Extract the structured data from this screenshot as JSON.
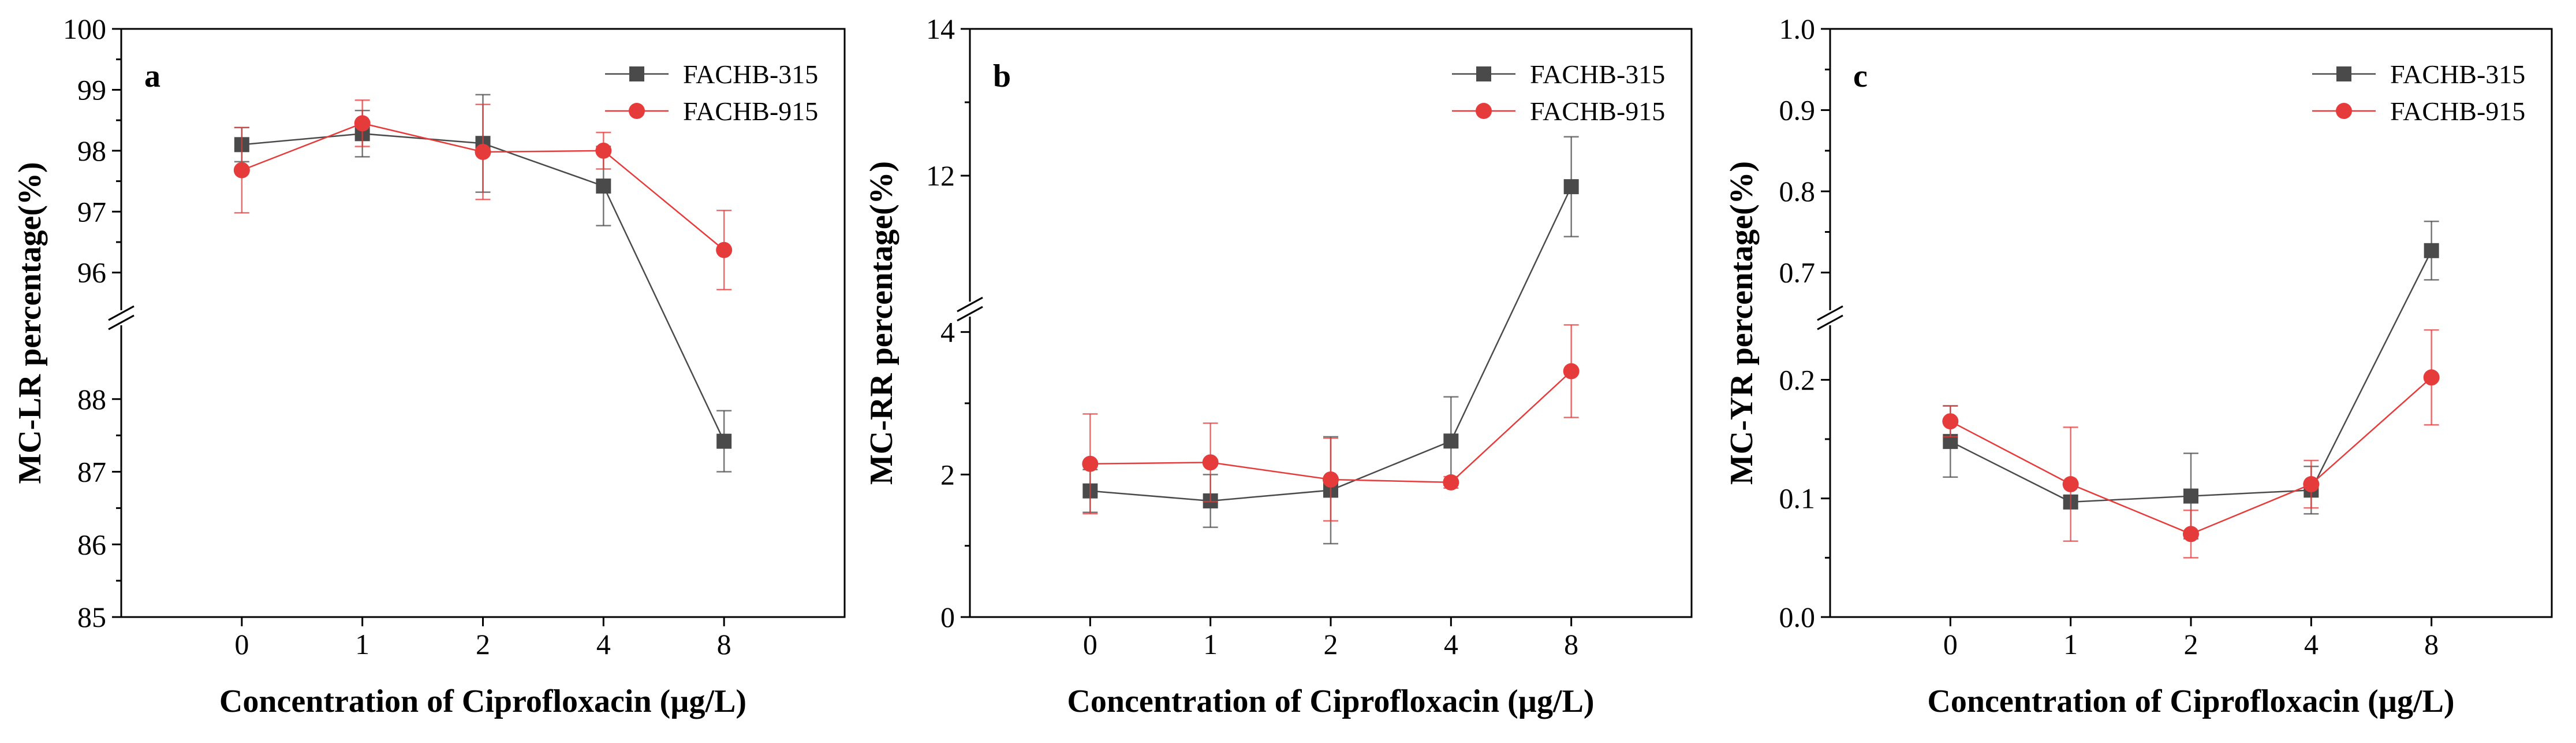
{
  "chart_data": [
    {
      "type": "line",
      "panel_label": "a",
      "title": "",
      "xlabel": "Concentration of Ciprofloxacin (µg/L)",
      "ylabel": "MC-LR percentage(%)",
      "categories": [
        "0",
        "1",
        "2",
        "4",
        "8"
      ],
      "y_axis_break": true,
      "segments": [
        {
          "ylim": [
            85,
            89
          ],
          "ticks": [
            "85",
            "86",
            "87",
            "88"
          ]
        },
        {
          "ylim": [
            95.4,
            100
          ],
          "ticks": [
            "96",
            "97",
            "98",
            "99",
            "100"
          ]
        }
      ],
      "series": [
        {
          "name": "FACHB-315",
          "color": "#4a4a4a",
          "marker": "square",
          "values": [
            98.1,
            98.28,
            98.12,
            97.42,
            87.42
          ],
          "errors": [
            0.28,
            0.38,
            0.8,
            0.65,
            0.42
          ]
        },
        {
          "name": "FACHB-915",
          "color": "#e53b3b",
          "marker": "circle",
          "values": [
            97.68,
            98.45,
            97.98,
            98.0,
            96.37
          ],
          "errors": [
            0.7,
            0.38,
            0.78,
            0.3,
            0.65
          ]
        }
      ],
      "legend": "top-right"
    },
    {
      "type": "line",
      "panel_label": "b",
      "title": "",
      "xlabel": "Concentration of Ciprofloxacin (µg/L)",
      "ylabel": "MC-RR percentage(%)",
      "categories": [
        "0",
        "1",
        "2",
        "4",
        "8"
      ],
      "y_axis_break": true,
      "segments": [
        {
          "ylim": [
            0,
            4.2
          ],
          "ticks": [
            "0",
            "2",
            "4"
          ]
        },
        {
          "ylim": [
            10.3,
            14
          ],
          "ticks": [
            "12",
            "14"
          ]
        }
      ],
      "series": [
        {
          "name": "FACHB-315",
          "color": "#4a4a4a",
          "marker": "square",
          "values": [
            1.77,
            1.63,
            1.78,
            2.47,
            11.85
          ],
          "errors": [
            0.3,
            0.37,
            0.75,
            0.62,
            0.68
          ]
        },
        {
          "name": "FACHB-915",
          "color": "#e53b3b",
          "marker": "circle",
          "values": [
            2.15,
            2.17,
            1.93,
            1.89,
            3.45
          ],
          "errors": [
            0.7,
            0.55,
            0.58,
            0.08,
            0.65
          ]
        }
      ],
      "legend": "top-right"
    },
    {
      "type": "line",
      "panel_label": "c",
      "title": "",
      "xlabel": "Concentration of Ciprofloxacin (µg/L)",
      "ylabel": "MC-YR percentage(%)",
      "categories": [
        "0",
        "1",
        "2",
        "4",
        "8"
      ],
      "y_axis_break": true,
      "segments": [
        {
          "ylim": [
            0,
            0.245
          ],
          "ticks": [
            "0.0",
            "0.1",
            "0.2"
          ]
        },
        {
          "ylim": [
            0.655,
            1.0
          ],
          "ticks": [
            "0.7",
            "0.8",
            "0.9",
            "1.0"
          ]
        }
      ],
      "series": [
        {
          "name": "FACHB-315",
          "color": "#4a4a4a",
          "marker": "square",
          "values": [
            0.148,
            0.097,
            0.102,
            0.107,
            0.727
          ],
          "errors": [
            0.03,
            0.005,
            0.036,
            0.02,
            0.036
          ]
        },
        {
          "name": "FACHB-915",
          "color": "#e53b3b",
          "marker": "circle",
          "values": [
            0.165,
            0.112,
            0.07,
            0.112,
            0.202
          ],
          "errors": [
            0.013,
            0.048,
            0.02,
            0.02,
            0.04
          ]
        }
      ],
      "legend": "top-right"
    }
  ]
}
